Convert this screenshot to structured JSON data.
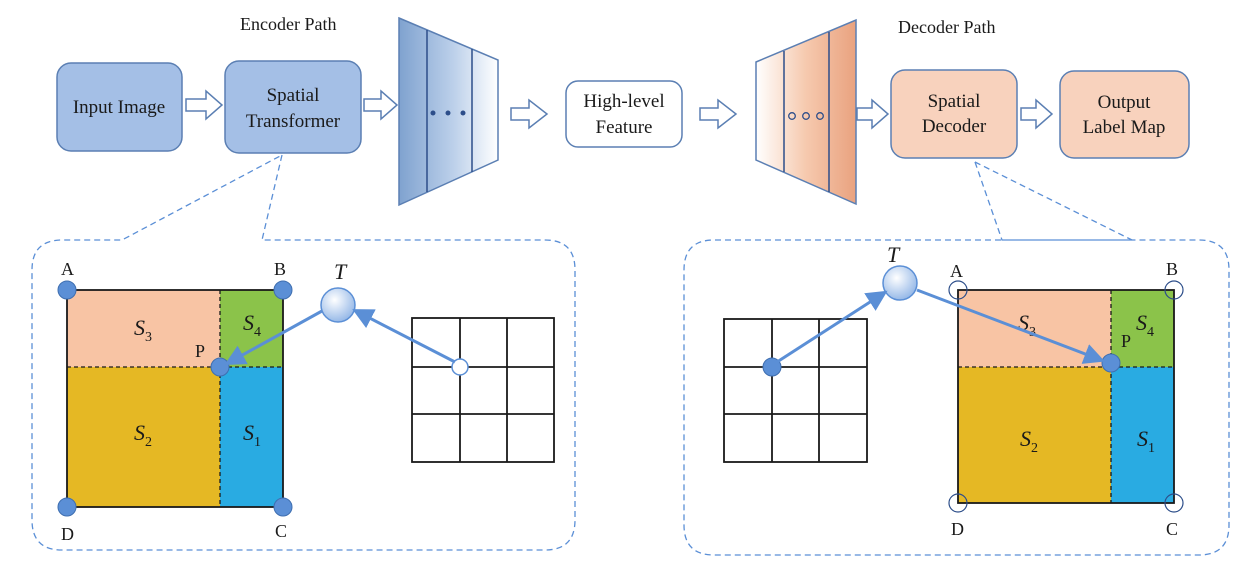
{
  "encoder": {
    "title": "Encoder Path",
    "input_box": "Input Image",
    "transformer_line1": "Spatial",
    "transformer_line2": "Transformer",
    "ellipsis": "• • •"
  },
  "middle": {
    "feature_line1": "High-level",
    "feature_line2": "Feature"
  },
  "decoder": {
    "title": "Decoder Path",
    "decoder_line1": "Spatial",
    "decoder_line2": "Decoder",
    "output_line1": "Output",
    "output_line2": "Label Map",
    "ellipsis": "ooo"
  },
  "left_detail": {
    "corner_a": "A",
    "corner_b": "B",
    "corner_c": "C",
    "corner_d": "D",
    "point": "P",
    "transform": "T",
    "regions": [
      {
        "letter": "S",
        "sub": "3"
      },
      {
        "letter": "S",
        "sub": "4"
      },
      {
        "letter": "S",
        "sub": "2"
      },
      {
        "letter": "S",
        "sub": "1"
      }
    ]
  },
  "right_detail": {
    "corner_a": "A",
    "corner_b": "B",
    "corner_c": "C",
    "corner_d": "D",
    "point": "P",
    "transform": "T",
    "regions": [
      {
        "letter": "S",
        "sub": "3"
      },
      {
        "letter": "S",
        "sub": "4"
      },
      {
        "letter": "S",
        "sub": "2"
      },
      {
        "letter": "S",
        "sub": "1"
      }
    ]
  },
  "colors": {
    "encoder_fill": "#a4bfe6",
    "encoder_stroke": "#5b7fb3",
    "decoder_fill": "#f8d2bd",
    "decoder_stroke": "#c07a5a",
    "s1": "#29abe2",
    "s2": "#e5b824",
    "s3": "#f8c4a4",
    "s4": "#8bc34a",
    "dot": "#5b8fd6",
    "dash": "#5b8fd6"
  }
}
